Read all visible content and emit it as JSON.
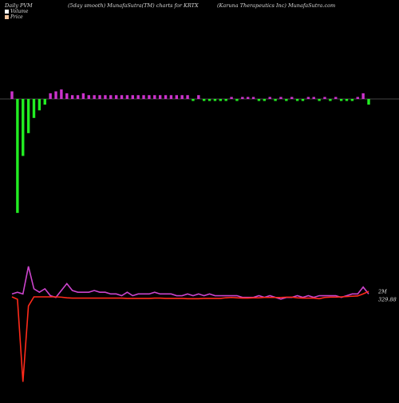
{
  "header": {
    "left": "Daily PVM",
    "center": "(5day smooth) MunafaSutra(TM) charts for KRTX",
    "right": "(Karuna Therapeutics Inc) MunafaSutra.com"
  },
  "legend": {
    "volume": {
      "label": "Volume",
      "color": "#ffffff"
    },
    "price": {
      "label": "Price",
      "color": "#f2c6a0"
    }
  },
  "colors": {
    "background": "#000000",
    "volume_up": "#cc33cc",
    "volume_down": "#22ee22",
    "volume_line": "#cc44cc",
    "price_line": "#ff2a1a"
  },
  "chart_data": {
    "type": "line",
    "panels": [
      "volume-bars",
      "volume-and-price-lines"
    ],
    "x": [
      1,
      2,
      3,
      4,
      5,
      6,
      7,
      8,
      9,
      10,
      11,
      12,
      13,
      14,
      15,
      16,
      17,
      18,
      19,
      20,
      21,
      22,
      23,
      24,
      25,
      26,
      27,
      28,
      29,
      30,
      31,
      32,
      33,
      34,
      35,
      36,
      37,
      38,
      39,
      40,
      41,
      42,
      43,
      44,
      45,
      46,
      47,
      48,
      49,
      50,
      51,
      52,
      53,
      54,
      55,
      56,
      57,
      58,
      59,
      60,
      61,
      62,
      63,
      64,
      65,
      66
    ],
    "volume_bars": [
      0.04,
      -0.6,
      -0.3,
      -0.18,
      -0.1,
      -0.06,
      -0.03,
      0.03,
      0.04,
      0.05,
      0.03,
      0.02,
      0.02,
      0.03,
      0.02,
      0.02,
      0.02,
      0.02,
      0.02,
      0.02,
      0.02,
      0.02,
      0.02,
      0.02,
      0.02,
      0.02,
      0.02,
      0.02,
      0.02,
      0.02,
      0.02,
      0.02,
      0.02,
      -0.01,
      0.02,
      -0.01,
      -0.01,
      -0.01,
      -0.01,
      -0.01,
      0.01,
      -0.01,
      0.01,
      0.01,
      0.01,
      -0.01,
      -0.01,
      0.01,
      -0.01,
      0.01,
      -0.01,
      0.01,
      -0.01,
      -0.01,
      0.01,
      0.01,
      -0.01,
      0.01,
      -0.01,
      0.01,
      -0.01,
      -0.01,
      -0.01,
      0.01,
      0.03,
      -0.03
    ],
    "series": [
      {
        "name": "Volume",
        "values": [
          0.84,
          0.85,
          0.84,
          1.0,
          0.87,
          0.85,
          0.87,
          0.83,
          0.82,
          0.86,
          0.9,
          0.86,
          0.85,
          0.85,
          0.85,
          0.86,
          0.85,
          0.85,
          0.84,
          0.84,
          0.83,
          0.85,
          0.83,
          0.84,
          0.84,
          0.84,
          0.85,
          0.84,
          0.84,
          0.84,
          0.83,
          0.83,
          0.84,
          0.83,
          0.84,
          0.83,
          0.84,
          0.83,
          0.83,
          0.83,
          0.83,
          0.83,
          0.82,
          0.82,
          0.82,
          0.83,
          0.82,
          0.83,
          0.82,
          0.81,
          0.82,
          0.82,
          0.83,
          0.82,
          0.83,
          0.82,
          0.83,
          0.83,
          0.83,
          0.83,
          0.82,
          0.83,
          0.84,
          0.84,
          0.88,
          0.84
        ]
      },
      {
        "name": "Price",
        "values": [
          300,
          292,
          20,
          270,
          300,
          300,
          300,
          300,
          300,
          299,
          297,
          296,
          296,
          296,
          296,
          296,
          296,
          296,
          296,
          296,
          296,
          295,
          295,
          295,
          295,
          295,
          296,
          296,
          295,
          295,
          295,
          295,
          294,
          294,
          294,
          295,
          295,
          295,
          295,
          297,
          298,
          297,
          296,
          296,
          297,
          297,
          298,
          298,
          298,
          298,
          299,
          299,
          297,
          296,
          296,
          296,
          294,
          298,
          299,
          299,
          300,
          301,
          302,
          303,
          310,
          318
        ]
      }
    ],
    "last_value_labels": {
      "volume": "2M",
      "price": "329.88"
    },
    "grid": false,
    "legend_position": "top-left"
  }
}
